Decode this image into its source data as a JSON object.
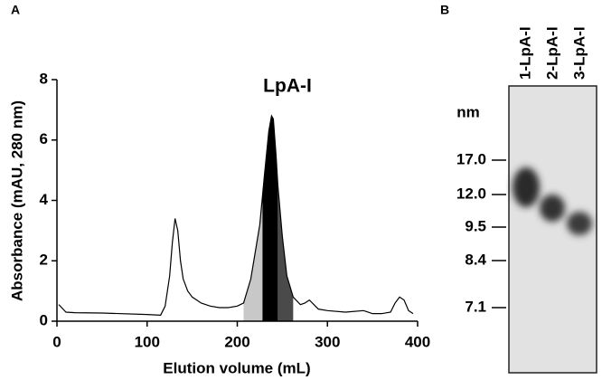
{
  "chart_data": [
    {
      "type": "line",
      "panel_label": "A",
      "annotation": "LpA-I",
      "x_label": "Elution volume (mL)",
      "y_label": "Absorbance (mAU, 280 nm)",
      "xlim": [
        0,
        400
      ],
      "ylim": [
        0,
        8
      ],
      "xticks": [
        0,
        100,
        200,
        300,
        400
      ],
      "yticks": [
        0,
        2,
        4,
        6,
        8
      ],
      "x": [
        2,
        10,
        20,
        50,
        100,
        115,
        120,
        125,
        128,
        131,
        134,
        137,
        140,
        145,
        150,
        160,
        170,
        180,
        190,
        200,
        207,
        215,
        220,
        225,
        230,
        235,
        238,
        240,
        243,
        245,
        250,
        255,
        262,
        270,
        275,
        280,
        285,
        290,
        300,
        320,
        340,
        345,
        350,
        360,
        370,
        375,
        380,
        385,
        390,
        395
      ],
      "values": [
        0.55,
        0.3,
        0.28,
        0.27,
        0.22,
        0.2,
        0.5,
        1.5,
        2.6,
        3.4,
        3.0,
        2.0,
        1.4,
        1.0,
        0.8,
        0.6,
        0.5,
        0.45,
        0.45,
        0.5,
        0.6,
        1.4,
        2.3,
        3.2,
        4.8,
        6.3,
        6.8,
        6.7,
        5.5,
        4.5,
        2.8,
        1.5,
        0.8,
        0.55,
        0.6,
        0.7,
        0.55,
        0.4,
        0.35,
        0.3,
        0.35,
        0.3,
        0.25,
        0.25,
        0.3,
        0.6,
        0.8,
        0.7,
        0.35,
        0.25
      ],
      "color": "#000000",
      "shaded_regions": [
        {
          "xrange": [
            207,
            228
          ],
          "color": "#c8c8c8"
        },
        {
          "xrange": [
            228,
            245
          ],
          "color": "#000000"
        },
        {
          "xrange": [
            245,
            262
          ],
          "color": "#4a4a4a"
        }
      ]
    },
    {
      "type": "gel",
      "panel_label": "B",
      "unit_label": "nm",
      "lanes": [
        "1-LpA-I",
        "2-LpA-I",
        "3-LpA-I"
      ],
      "yticks": [
        {
          "value": 17,
          "label": "17.0"
        },
        {
          "value": 12,
          "label": "12.0"
        },
        {
          "value": 9.5,
          "label": "9.5"
        },
        {
          "value": 8.4,
          "label": "8.4"
        },
        {
          "value": 7.1,
          "label": "7.1"
        }
      ]
    }
  ]
}
